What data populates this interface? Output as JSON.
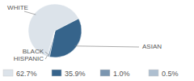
{
  "chart_data": {
    "type": "pie",
    "categories": [
      "WHITE",
      "ASIAN",
      "BLACK",
      "HISPANIC"
    ],
    "values": [
      62.7,
      35.9,
      1.0,
      0.5
    ],
    "value_labels": [
      "62.7%",
      "35.9%",
      "1.0%",
      "0.5%"
    ],
    "colors": [
      "#dce3ea",
      "#36648b",
      "#7b96b0",
      "#aebfd0"
    ]
  }
}
